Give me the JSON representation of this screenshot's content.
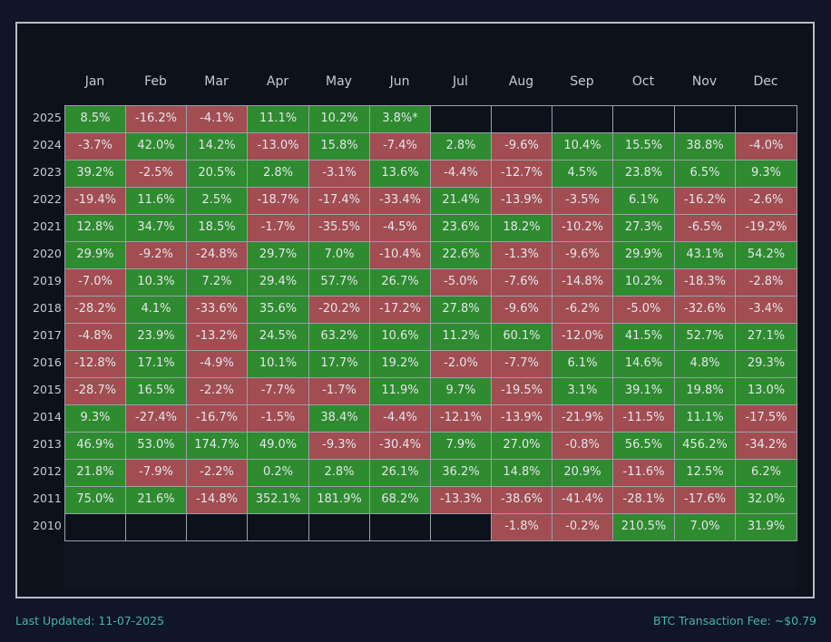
{
  "chart_data": {
    "type": "table",
    "columns": [
      "Jan",
      "Feb",
      "Mar",
      "Apr",
      "May",
      "Jun",
      "Jul",
      "Aug",
      "Sep",
      "Oct",
      "Nov",
      "Dec"
    ],
    "rows": [
      {
        "year": "2025",
        "cells": [
          "8.5%",
          "-16.2%",
          "-4.1%",
          "11.1%",
          "10.2%",
          "3.8%*",
          "",
          "",
          "",
          "",
          "",
          ""
        ]
      },
      {
        "year": "2024",
        "cells": [
          "-3.7%",
          "42.0%",
          "14.2%",
          "-13.0%",
          "15.8%",
          "-7.4%",
          "2.8%",
          "-9.6%",
          "10.4%",
          "15.5%",
          "38.8%",
          "-4.0%"
        ]
      },
      {
        "year": "2023",
        "cells": [
          "39.2%",
          "-2.5%",
          "20.5%",
          "2.8%",
          "-3.1%",
          "13.6%",
          "-4.4%",
          "-12.7%",
          "4.5%",
          "23.8%",
          "6.5%",
          "9.3%"
        ]
      },
      {
        "year": "2022",
        "cells": [
          "-19.4%",
          "11.6%",
          "2.5%",
          "-18.7%",
          "-17.4%",
          "-33.4%",
          "21.4%",
          "-13.9%",
          "-3.5%",
          "6.1%",
          "-16.2%",
          "-2.6%"
        ]
      },
      {
        "year": "2021",
        "cells": [
          "12.8%",
          "34.7%",
          "18.5%",
          "-1.7%",
          "-35.5%",
          "-4.5%",
          "23.6%",
          "18.2%",
          "-10.2%",
          "27.3%",
          "-6.5%",
          "-19.2%"
        ]
      },
      {
        "year": "2020",
        "cells": [
          "29.9%",
          "-9.2%",
          "-24.8%",
          "29.7%",
          "7.0%",
          "-10.4%",
          "22.6%",
          "-1.3%",
          "-9.6%",
          "29.9%",
          "43.1%",
          "54.2%"
        ]
      },
      {
        "year": "2019",
        "cells": [
          "-7.0%",
          "10.3%",
          "7.2%",
          "29.4%",
          "57.7%",
          "26.7%",
          "-5.0%",
          "-7.6%",
          "-14.8%",
          "10.2%",
          "-18.3%",
          "-2.8%"
        ]
      },
      {
        "year": "2018",
        "cells": [
          "-28.2%",
          "4.1%",
          "-33.6%",
          "35.6%",
          "-20.2%",
          "-17.2%",
          "27.8%",
          "-9.6%",
          "-6.2%",
          "-5.0%",
          "-32.6%",
          "-3.4%"
        ]
      },
      {
        "year": "2017",
        "cells": [
          "-4.8%",
          "23.9%",
          "-13.2%",
          "24.5%",
          "63.2%",
          "10.6%",
          "11.2%",
          "60.1%",
          "-12.0%",
          "41.5%",
          "52.7%",
          "27.1%"
        ]
      },
      {
        "year": "2016",
        "cells": [
          "-12.8%",
          "17.1%",
          "-4.9%",
          "10.1%",
          "17.7%",
          "19.2%",
          "-2.0%",
          "-7.7%",
          "6.1%",
          "14.6%",
          "4.8%",
          "29.3%"
        ]
      },
      {
        "year": "2015",
        "cells": [
          "-28.7%",
          "16.5%",
          "-2.2%",
          "-7.7%",
          "-1.7%",
          "11.9%",
          "9.7%",
          "-19.5%",
          "3.1%",
          "39.1%",
          "19.8%",
          "13.0%"
        ]
      },
      {
        "year": "2014",
        "cells": [
          "9.3%",
          "-27.4%",
          "-16.7%",
          "-1.5%",
          "38.4%",
          "-4.4%",
          "-12.1%",
          "-13.9%",
          "-21.9%",
          "-11.5%",
          "11.1%",
          "-17.5%"
        ]
      },
      {
        "year": "2013",
        "cells": [
          "46.9%",
          "53.0%",
          "174.7%",
          "49.0%",
          "-9.3%",
          "-30.4%",
          "7.9%",
          "27.0%",
          "-0.8%",
          "56.5%",
          "456.2%",
          "-34.2%"
        ]
      },
      {
        "year": "2012",
        "cells": [
          "21.8%",
          "-7.9%",
          "-2.2%",
          "0.2%",
          "2.8%",
          "26.1%",
          "36.2%",
          "14.8%",
          "20.9%",
          "-11.6%",
          "12.5%",
          "6.2%"
        ]
      },
      {
        "year": "2011",
        "cells": [
          "75.0%",
          "21.6%",
          "-14.8%",
          "352.1%",
          "181.9%",
          "68.2%",
          "-13.3%",
          "-38.6%",
          "-41.4%",
          "-28.1%",
          "-17.6%",
          "32.0%"
        ]
      },
      {
        "year": "2010",
        "cells": [
          "",
          "",
          "",
          "",
          "",
          "",
          "",
          "-1.8%",
          "-0.2%",
          "210.5%",
          "7.0%",
          "31.9%"
        ]
      }
    ],
    "colors": {
      "positive": "#2e8b2f",
      "negative": "#a14d52",
      "empty": "#0d111c"
    }
  },
  "footer": {
    "last_updated": "Last Updated: 11-07-2025",
    "fee": "BTC Transaction Fee: ~$0.79"
  }
}
